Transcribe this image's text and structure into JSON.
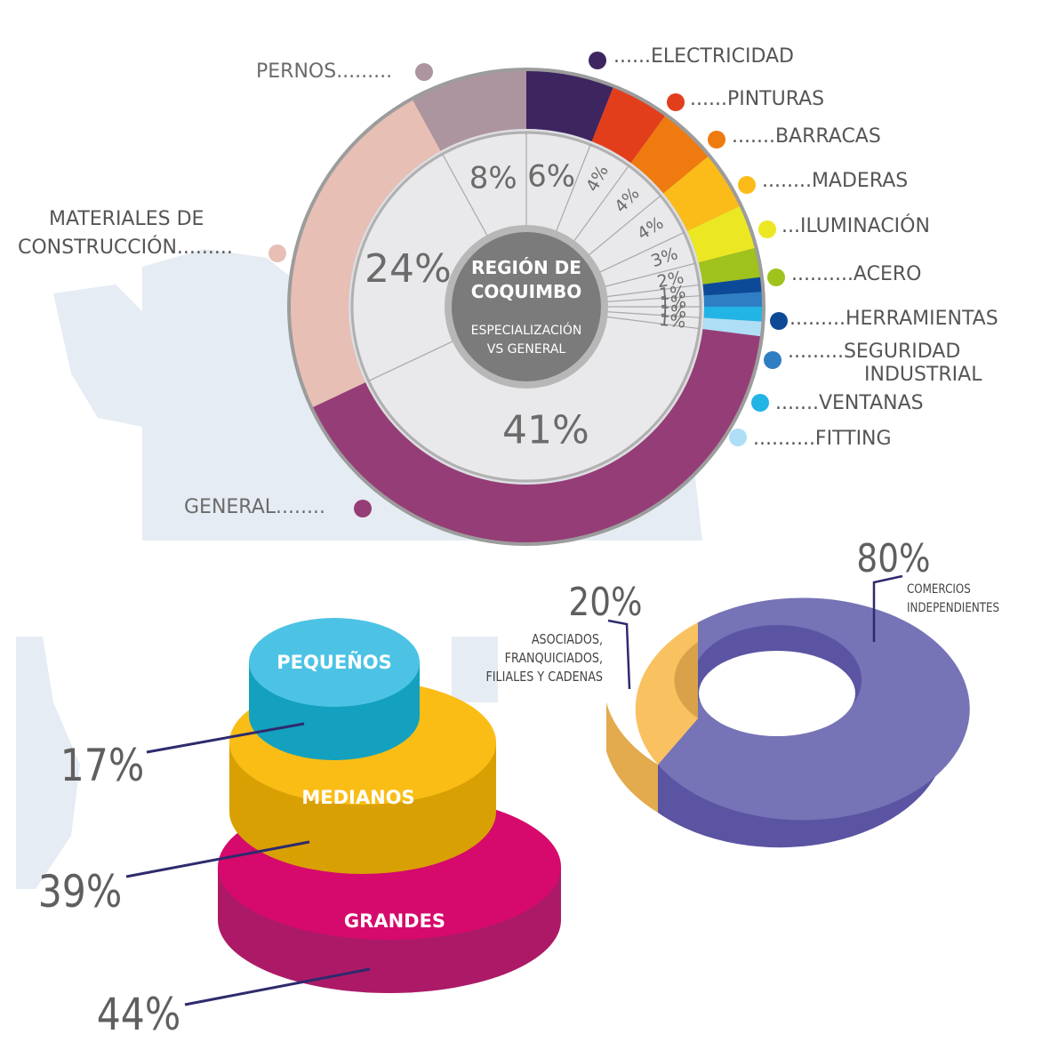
{
  "chart_data": [
    {
      "type": "pie",
      "title": "REGIÓN DE COQUIMBO",
      "subtitle": "ESPECIALIZACIÓN VS GENERAL",
      "slices": [
        {
          "label": "ELECTRICIDAD",
          "prefix": "......",
          "value": 6,
          "value_label": "6%",
          "color": "#3d2560"
        },
        {
          "label": "PINTURAS",
          "prefix": "......",
          "value": 4,
          "value_label": "4%",
          "color": "#e23e1c"
        },
        {
          "label": "BARRACAS",
          "prefix": ".......",
          "value": 4,
          "value_label": "4%",
          "color": "#ef7a10"
        },
        {
          "label": "MADERAS",
          "prefix": "........",
          "value": 4,
          "value_label": "4%",
          "color": "#fbbc1a"
        },
        {
          "label": "ILUMINACIÓN",
          "prefix": "...",
          "value": 3,
          "value_label": "3%",
          "color": "#ece723"
        },
        {
          "label": "ACERO",
          "prefix": "..........",
          "value": 2,
          "value_label": "2%",
          "color": "#9fc21d"
        },
        {
          "label": "HERRAMIENTAS",
          "prefix": ".........",
          "value": 1,
          "value_label": "1%",
          "color": "#0c4a98"
        },
        {
          "label": "SEGURIDAD INDUSTRIAL",
          "label_lines": [
            "SEGURIDAD",
            "INDUSTRIAL"
          ],
          "prefix": ".........",
          "value": 1,
          "value_label": "1%",
          "color": "#2f7ec4"
        },
        {
          "label": "VENTANAS",
          "prefix": ".......",
          "value": 1,
          "value_label": "1%",
          "color": "#23b4e6"
        },
        {
          "label": "FITTING",
          "prefix": "..........",
          "value": 1,
          "value_label": "1%",
          "color": "#aedff6"
        },
        {
          "label": "GENERAL",
          "suffix": "........",
          "value": 41,
          "value_label": "41%",
          "color": "#953d77"
        },
        {
          "label": "MATERIALES DE CONSTRUCCIÓN",
          "label_lines": [
            "MATERIALES DE",
            "CONSTRUCCIÓN........."
          ],
          "value": 24,
          "value_label": "24%",
          "color": "#e7bfb5"
        },
        {
          "label": "PERNOS",
          "suffix": ".........",
          "value": 8,
          "value_label": "8%",
          "color": "#ad95a0"
        }
      ]
    },
    {
      "type": "stacked-cylinder",
      "levels": [
        {
          "label": "PEQUEÑOS",
          "value": 17,
          "value_label": "17%",
          "color": "#4cc3e5"
        },
        {
          "label": "MEDIANOS",
          "value": 39,
          "value_label": "39%",
          "color": "#f9bd16"
        },
        {
          "label": "GRANDES",
          "value": 44,
          "value_label": "44%",
          "color": "#d50a6c"
        }
      ]
    },
    {
      "type": "pie",
      "style": "3d-donut",
      "slices": [
        {
          "label": "COMERCIOS INDEPENDIENTES",
          "label_lines": [
            "COMERCIOS",
            "INDEPENDIENTES"
          ],
          "value": 80,
          "value_label": "80%",
          "color": "#7673b6"
        },
        {
          "label": "ASOCIADOS, FRANQUICIADOS, FILIALES Y CADENAS",
          "label_lines": [
            "ASOCIADOS,",
            "FRANQUICIADOS,",
            "FILIALES Y CADENAS"
          ],
          "value": 20,
          "value_label": "20%",
          "color": "#f9c15f"
        }
      ]
    }
  ]
}
